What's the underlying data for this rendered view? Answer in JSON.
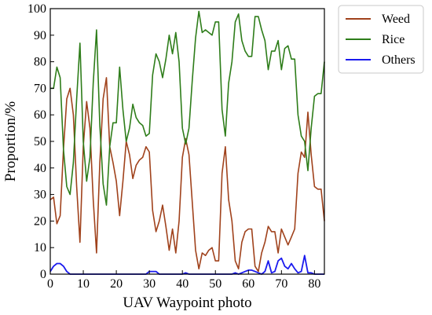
{
  "chart_data": {
    "type": "line",
    "xlabel": "UAV Waypoint photo",
    "ylabel": "Proportion/%",
    "xlim": [
      0,
      83
    ],
    "ylim": [
      0,
      100
    ],
    "xticks": [
      0,
      10,
      20,
      30,
      40,
      50,
      60,
      70,
      80
    ],
    "yticks": [
      0,
      10,
      20,
      30,
      40,
      50,
      60,
      70,
      80,
      90,
      100
    ],
    "grid": false,
    "legend": "outside-top-right",
    "series": [
      {
        "name": "Weed",
        "color": "#a0421c",
        "points": [
          [
            0,
            28
          ],
          [
            1,
            29
          ],
          [
            2,
            19
          ],
          [
            3,
            22
          ],
          [
            4,
            47
          ],
          [
            5,
            66
          ],
          [
            6,
            70
          ],
          [
            7,
            60
          ],
          [
            8,
            33
          ],
          [
            9,
            12
          ],
          [
            10,
            48
          ],
          [
            11,
            65
          ],
          [
            12,
            55
          ],
          [
            13,
            28
          ],
          [
            14,
            8
          ],
          [
            15,
            42
          ],
          [
            16,
            66
          ],
          [
            17,
            74
          ],
          [
            18,
            48
          ],
          [
            19,
            42
          ],
          [
            20,
            35
          ],
          [
            21,
            22
          ],
          [
            22,
            35
          ],
          [
            23,
            50
          ],
          [
            24,
            45
          ],
          [
            25,
            36
          ],
          [
            26,
            41
          ],
          [
            27,
            43
          ],
          [
            28,
            44
          ],
          [
            29,
            48
          ],
          [
            30,
            46
          ],
          [
            31,
            24
          ],
          [
            32,
            16
          ],
          [
            33,
            20
          ],
          [
            34,
            26
          ],
          [
            35,
            18
          ],
          [
            36,
            9
          ],
          [
            37,
            17
          ],
          [
            38,
            8
          ],
          [
            39,
            20
          ],
          [
            40,
            44
          ],
          [
            41,
            51
          ],
          [
            42,
            45
          ],
          [
            43,
            27
          ],
          [
            44,
            9
          ],
          [
            45,
            2
          ],
          [
            46,
            8
          ],
          [
            47,
            7
          ],
          [
            48,
            9
          ],
          [
            49,
            10
          ],
          [
            50,
            5
          ],
          [
            51,
            5
          ],
          [
            52,
            38
          ],
          [
            53,
            48
          ],
          [
            54,
            28
          ],
          [
            55,
            20
          ],
          [
            56,
            5
          ],
          [
            57,
            2
          ],
          [
            58,
            12
          ],
          [
            59,
            16
          ],
          [
            60,
            17
          ],
          [
            61,
            17
          ],
          [
            62,
            3
          ],
          [
            63,
            1
          ],
          [
            64,
            8
          ],
          [
            65,
            12
          ],
          [
            66,
            18
          ],
          [
            67,
            16
          ],
          [
            68,
            16
          ],
          [
            69,
            8
          ],
          [
            70,
            17
          ],
          [
            71,
            14
          ],
          [
            72,
            11
          ],
          [
            73,
            14
          ],
          [
            74,
            17
          ],
          [
            75,
            38
          ],
          [
            76,
            46
          ],
          [
            77,
            44
          ],
          [
            78,
            61
          ],
          [
            79,
            45
          ],
          [
            80,
            33
          ],
          [
            81,
            32
          ],
          [
            82,
            32
          ],
          [
            83,
            20
          ]
        ]
      },
      {
        "name": "Rice",
        "color": "#2e7d1a",
        "points": [
          [
            0,
            70
          ],
          [
            1,
            70
          ],
          [
            2,
            78
          ],
          [
            3,
            74
          ],
          [
            4,
            47
          ],
          [
            5,
            33
          ],
          [
            6,
            30
          ],
          [
            7,
            42
          ],
          [
            8,
            66
          ],
          [
            9,
            87
          ],
          [
            10,
            50
          ],
          [
            11,
            35
          ],
          [
            12,
            44
          ],
          [
            13,
            72
          ],
          [
            14,
            92
          ],
          [
            15,
            56
          ],
          [
            16,
            34
          ],
          [
            17,
            26
          ],
          [
            18,
            48
          ],
          [
            19,
            57
          ],
          [
            20,
            57
          ],
          [
            21,
            78
          ],
          [
            22,
            62
          ],
          [
            23,
            50
          ],
          [
            24,
            55
          ],
          [
            25,
            64
          ],
          [
            26,
            59
          ],
          [
            27,
            57
          ],
          [
            28,
            56
          ],
          [
            29,
            52
          ],
          [
            30,
            53
          ],
          [
            31,
            75
          ],
          [
            32,
            83
          ],
          [
            33,
            80
          ],
          [
            34,
            74
          ],
          [
            35,
            81
          ],
          [
            36,
            90
          ],
          [
            37,
            83
          ],
          [
            38,
            91
          ],
          [
            39,
            80
          ],
          [
            40,
            55
          ],
          [
            41,
            49
          ],
          [
            42,
            55
          ],
          [
            43,
            73
          ],
          [
            44,
            89
          ],
          [
            45,
            99
          ],
          [
            46,
            91
          ],
          [
            47,
            92
          ],
          [
            48,
            91
          ],
          [
            49,
            90
          ],
          [
            50,
            95
          ],
          [
            51,
            95
          ],
          [
            52,
            62
          ],
          [
            53,
            52
          ],
          [
            54,
            72
          ],
          [
            55,
            80
          ],
          [
            56,
            95
          ],
          [
            57,
            98
          ],
          [
            58,
            88
          ],
          [
            59,
            84
          ],
          [
            60,
            82
          ],
          [
            61,
            82
          ],
          [
            62,
            97
          ],
          [
            63,
            97
          ],
          [
            64,
            92
          ],
          [
            65,
            88
          ],
          [
            66,
            77
          ],
          [
            67,
            84
          ],
          [
            68,
            84
          ],
          [
            69,
            88
          ],
          [
            70,
            77
          ],
          [
            71,
            85
          ],
          [
            72,
            86
          ],
          [
            73,
            81
          ],
          [
            74,
            81
          ],
          [
            75,
            60
          ],
          [
            76,
            52
          ],
          [
            77,
            50
          ],
          [
            78,
            39
          ],
          [
            79,
            55
          ],
          [
            80,
            67
          ],
          [
            81,
            68
          ],
          [
            82,
            68
          ],
          [
            83,
            80
          ]
        ]
      },
      {
        "name": "Others",
        "color": "#1a1aee",
        "points": [
          [
            0,
            1
          ],
          [
            1,
            3
          ],
          [
            2,
            4
          ],
          [
            3,
            4
          ],
          [
            4,
            3
          ],
          [
            5,
            1
          ],
          [
            6,
            0
          ],
          [
            10,
            0
          ],
          [
            20,
            0
          ],
          [
            29,
            0
          ],
          [
            30,
            1
          ],
          [
            31,
            1
          ],
          [
            32,
            1
          ],
          [
            33,
            0
          ],
          [
            40,
            0
          ],
          [
            41,
            0.5
          ],
          [
            42,
            0
          ],
          [
            50,
            0
          ],
          [
            55,
            0
          ],
          [
            56,
            0.5
          ],
          [
            57,
            0
          ],
          [
            58,
            0.5
          ],
          [
            59,
            1
          ],
          [
            60,
            1.5
          ],
          [
            61,
            1.5
          ],
          [
            62,
            1
          ],
          [
            63,
            0.5
          ],
          [
            64,
            0
          ],
          [
            65,
            1
          ],
          [
            66,
            5
          ],
          [
            67,
            0.5
          ],
          [
            68,
            1
          ],
          [
            69,
            5
          ],
          [
            70,
            6
          ],
          [
            71,
            3
          ],
          [
            72,
            2
          ],
          [
            73,
            4
          ],
          [
            74,
            2
          ],
          [
            75,
            0.5
          ],
          [
            76,
            1
          ],
          [
            77,
            7
          ],
          [
            78,
            0.5
          ],
          [
            79,
            0.5
          ],
          [
            80,
            0
          ],
          [
            83,
            0
          ]
        ]
      }
    ]
  }
}
